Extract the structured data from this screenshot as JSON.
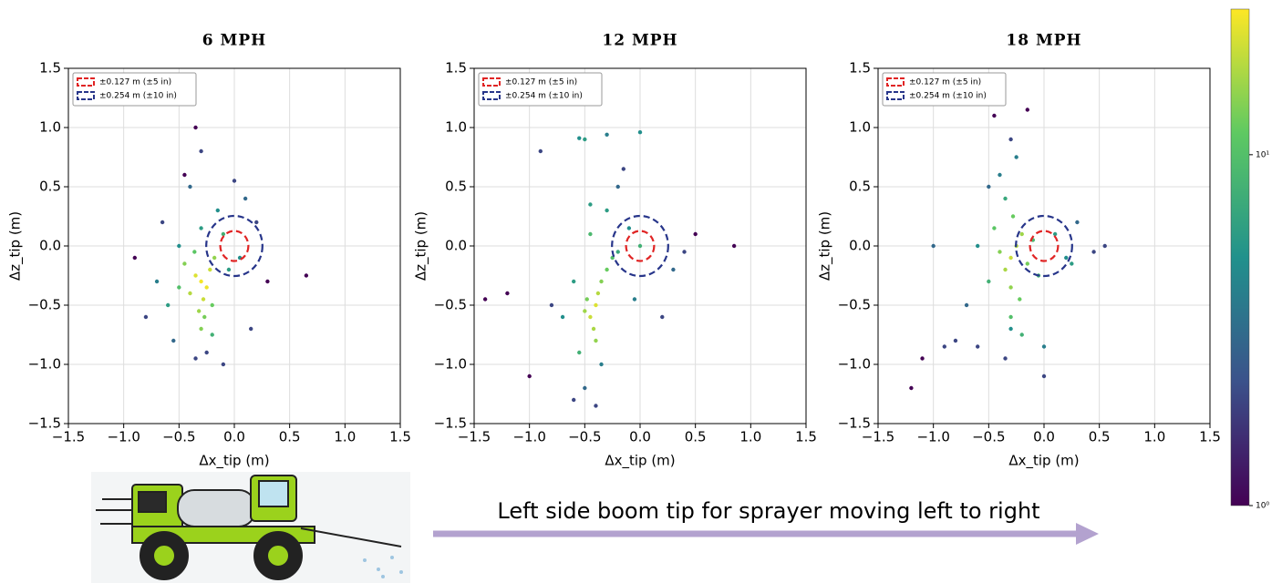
{
  "chart_data": [
    {
      "type": "scatter",
      "title": "6 MPH",
      "x_label": "Δx_tip (m)",
      "y_label": "Δz_tip (m)",
      "xlim": [
        -1.5,
        1.5
      ],
      "ylim": [
        -1.5,
        1.5
      ],
      "xticks": [
        {
          "value": -1.5,
          "label": "−1.5"
        },
        {
          "value": -1,
          "label": "−1.0"
        },
        {
          "value": -0.5,
          "label": "−0.5"
        },
        {
          "value": 0,
          "label": "0.0"
        },
        0.5,
        {
          "value": 1,
          "label": "1.0"
        },
        1.5
      ],
      "yticks": [
        {
          "value": -1.5,
          "label": "−1.5"
        },
        {
          "value": -1,
          "label": "−1.0"
        },
        {
          "value": -0.5,
          "label": "−0.5"
        },
        {
          "value": 0,
          "label": "0.0"
        },
        0.5,
        {
          "value": 1,
          "label": "1.0"
        },
        1.5
      ],
      "grid": true,
      "legend": "upper left",
      "circles": [
        {
          "name": "±0.127 m (±5 in)",
          "radius": 0.127,
          "color": "#e02424"
        },
        {
          "name": "±0.254 m (±10 in)",
          "radius": 0.254,
          "color": "#27358a"
        }
      ],
      "x": [
        -0.3,
        -0.25,
        -0.35,
        -0.28,
        -0.22,
        -0.4,
        -0.32,
        -0.18,
        -0.3,
        -0.45,
        -0.27,
        -0.2,
        -0.36,
        -0.5,
        -0.1,
        -0.6,
        -0.05,
        0.05,
        -0.7,
        -0.15,
        -0.4,
        -0.3,
        0.1,
        -0.55,
        -0.25,
        -0.8,
        0.2,
        -0.35,
        -0.45,
        -0.1,
        0.3,
        -0.9,
        0.65,
        -0.3,
        -0.2,
        0.0,
        -0.5,
        0.15,
        -0.65,
        -0.35
      ],
      "y": [
        -0.3,
        -0.35,
        -0.25,
        -0.45,
        -0.2,
        -0.4,
        -0.55,
        -0.1,
        -0.7,
        -0.15,
        -0.6,
        -0.5,
        -0.05,
        -0.35,
        0.1,
        -0.5,
        -0.2,
        -0.1,
        -0.3,
        0.3,
        0.5,
        0.8,
        0.4,
        -0.8,
        -0.9,
        -0.6,
        0.2,
        1.0,
        0.6,
        -1.0,
        -0.3,
        -0.1,
        -0.25,
        0.15,
        -0.75,
        0.55,
        0.0,
        -0.7,
        0.2,
        -0.95
      ],
      "density": [
        25,
        24,
        22,
        20,
        20,
        18,
        16,
        15,
        14,
        14,
        13,
        12,
        11,
        10,
        8,
        6,
        6,
        5,
        4,
        5,
        3,
        2,
        3,
        3,
        2,
        2,
        2,
        1,
        1,
        2,
        1,
        1,
        1,
        6,
        8,
        2,
        5,
        2,
        2,
        2
      ]
    },
    {
      "type": "scatter",
      "title": "12 MPH",
      "x_label": "Δx_tip (m)",
      "y_label": "Δz_tip (m)",
      "xlim": [
        -1.5,
        1.5
      ],
      "ylim": [
        -1.5,
        1.5
      ],
      "xticks": [
        {
          "value": -1.5,
          "label": "−1.5"
        },
        {
          "value": -1,
          "label": "−1.0"
        },
        {
          "value": -0.5,
          "label": "−0.5"
        },
        {
          "value": 0,
          "label": "0.0"
        },
        0.5,
        {
          "value": 1,
          "label": "1.0"
        },
        1.5
      ],
      "yticks": [
        {
          "value": -1.5,
          "label": "−1.5"
        },
        {
          "value": -1,
          "label": "−1.0"
        },
        {
          "value": -0.5,
          "label": "−0.5"
        },
        {
          "value": 0,
          "label": "0.0"
        },
        0.5,
        {
          "value": 1,
          "label": "1.0"
        },
        1.5
      ],
      "grid": true,
      "legend": "upper left",
      "circles": [
        {
          "name": "±0.127 m (±5 in)",
          "radius": 0.127,
          "color": "#e02424"
        },
        {
          "name": "±0.254 m (±10 in)",
          "radius": 0.254,
          "color": "#27358a"
        }
      ],
      "x": [
        -0.4,
        -0.45,
        -0.38,
        -0.42,
        -0.35,
        -0.5,
        -0.3,
        -0.4,
        -0.48,
        -0.25,
        -0.45,
        -0.55,
        -0.2,
        -0.3,
        -0.6,
        -0.1,
        0.0,
        -0.7,
        -0.35,
        -0.5,
        -0.4,
        -0.8,
        0.3,
        -1.0,
        0.5,
        -0.2,
        -0.5,
        0.2,
        -0.9,
        -0.55,
        -0.3,
        0.0,
        -0.15,
        -1.2,
        0.85,
        -0.6,
        -0.45,
        -0.05,
        0.4,
        -1.4
      ],
      "y": [
        -0.5,
        -0.6,
        -0.4,
        -0.7,
        -0.3,
        -0.55,
        -0.2,
        -0.8,
        -0.45,
        -0.1,
        0.1,
        -0.9,
        -0.05,
        0.3,
        -0.3,
        0.15,
        0.0,
        -0.6,
        -1.0,
        -1.2,
        -1.35,
        -0.5,
        -0.2,
        -1.1,
        0.1,
        0.5,
        0.9,
        -0.6,
        0.8,
        0.91,
        0.94,
        0.96,
        0.65,
        -0.4,
        0.0,
        -1.3,
        0.35,
        -0.45,
        -0.05,
        -0.45
      ],
      "density": [
        22,
        20,
        18,
        17,
        14,
        16,
        12,
        15,
        13,
        10,
        9,
        8,
        7,
        6,
        6,
        5,
        8,
        5,
        4,
        3,
        2,
        2,
        3,
        1,
        1,
        3,
        6,
        2,
        2,
        5,
        4,
        5,
        2,
        1,
        1,
        2,
        6,
        4,
        2,
        1
      ]
    },
    {
      "type": "scatter",
      "title": "18 MPH",
      "x_label": "Δx_tip (m)",
      "y_label": "Δz_tip (m)",
      "xlim": [
        -1.5,
        1.5
      ],
      "ylim": [
        -1.5,
        1.5
      ],
      "xticks": [
        {
          "value": -1.5,
          "label": "−1.5"
        },
        {
          "value": -1,
          "label": "−1.0"
        },
        {
          "value": -0.5,
          "label": "−0.5"
        },
        {
          "value": 0,
          "label": "0.0"
        },
        0.5,
        {
          "value": 1,
          "label": "1.0"
        },
        1.5
      ],
      "yticks": [
        {
          "value": -1.5,
          "label": "−1.5"
        },
        {
          "value": -1,
          "label": "−1.0"
        },
        {
          "value": -0.5,
          "label": "−0.5"
        },
        {
          "value": 0,
          "label": "0.0"
        },
        0.5,
        {
          "value": 1,
          "label": "1.0"
        },
        1.5
      ],
      "grid": true,
      "legend": "upper left",
      "circles": [
        {
          "name": "±0.127 m (±5 in)",
          "radius": 0.127,
          "color": "#e02424"
        },
        {
          "name": "±0.254 m (±10 in)",
          "radius": 0.254,
          "color": "#27358a"
        }
      ],
      "x": [
        -0.3,
        -0.25,
        -0.35,
        -0.2,
        -0.3,
        -0.4,
        -0.15,
        -0.28,
        -0.22,
        -0.45,
        -0.3,
        -0.1,
        -0.5,
        -0.35,
        -0.05,
        -0.6,
        0.1,
        -0.8,
        -0.2,
        -0.4,
        0.2,
        -1.0,
        0.45,
        -0.7,
        -0.35,
        -0.3,
        0.0,
        -1.2,
        0.55,
        -0.15,
        -0.5,
        0.25,
        -0.9,
        -0.25,
        -0.6,
        0.0,
        -0.45,
        -0.3,
        0.3,
        -1.1
      ],
      "y": [
        -0.1,
        0.0,
        -0.2,
        0.1,
        -0.35,
        -0.05,
        -0.15,
        0.25,
        -0.45,
        0.15,
        -0.6,
        0.05,
        -0.3,
        0.4,
        -0.25,
        0.0,
        0.1,
        -0.8,
        -0.75,
        0.6,
        -0.1,
        0.0,
        -0.05,
        -0.5,
        -0.95,
        0.9,
        -1.1,
        -1.2,
        0.0,
        1.15,
        0.5,
        -0.15,
        -0.85,
        0.75,
        -0.85,
        -0.85,
        1.1,
        -0.7,
        0.2,
        -0.95
      ],
      "density": [
        20,
        18,
        17,
        16,
        15,
        14,
        13,
        12,
        12,
        11,
        10,
        9,
        8,
        7,
        8,
        5,
        6,
        2,
        8,
        4,
        5,
        3,
        2,
        3,
        2,
        2,
        2,
        1,
        2,
        1,
        3,
        6,
        2,
        4,
        2,
        4,
        1,
        5,
        3,
        1
      ]
    }
  ],
  "colorbar": {
    "colormap": "viridis",
    "scale": "log",
    "lim": [
      1,
      26
    ],
    "ticks": [
      {
        "value": 1,
        "label": "10⁰"
      },
      {
        "value": 10,
        "label": "10¹"
      }
    ]
  },
  "caption": "Left side boom tip for sprayer moving left to right"
}
